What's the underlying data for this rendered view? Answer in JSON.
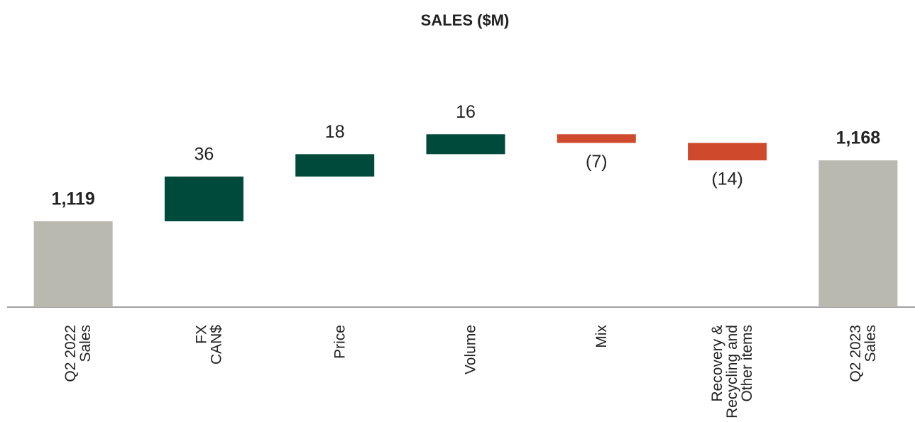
{
  "chart_data": {
    "type": "waterfall",
    "title": "SALES ($M)",
    "categories": [
      [
        "Q2 2022",
        "Sales"
      ],
      [
        "FX",
        "CAN$"
      ],
      [
        "Price"
      ],
      [
        "Volume"
      ],
      [
        "Mix"
      ],
      [
        "Recovery &",
        "Recycling and",
        "Other items"
      ],
      [
        "Q2 2023",
        "Sales"
      ]
    ],
    "values": [
      1119,
      36,
      18,
      16,
      -7,
      -14,
      1168
    ],
    "value_labels": [
      "1,119",
      "36",
      "18",
      "16",
      "(7)",
      "(14)",
      "1,168"
    ],
    "measure": [
      "absolute",
      "relative",
      "relative",
      "relative",
      "relative",
      "relative",
      "absolute"
    ],
    "colors": {
      "total": "#b9b9b0",
      "increase": "#004a3b",
      "decrease": "#cf4a2c"
    },
    "ylim": [
      1050,
      1200
    ]
  }
}
